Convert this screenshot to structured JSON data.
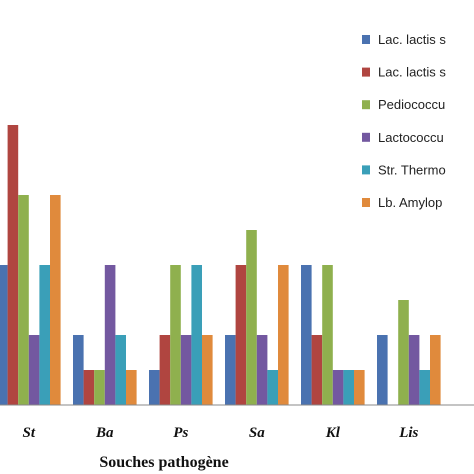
{
  "chart_data": {
    "type": "bar",
    "title": "",
    "xlabel": "Souches pathogène",
    "ylabel": "",
    "ylim": [
      0,
      8
    ],
    "grid": false,
    "legend_position": "right",
    "categories": [
      "St",
      "Ba",
      "Ps",
      "Sa",
      "Kl",
      "Lis"
    ],
    "series": [
      {
        "name": "Lac. lactis s",
        "color": "#4a72b0",
        "values": [
          4,
          2,
          1,
          2,
          4,
          2
        ]
      },
      {
        "name": "Lac. lactis s",
        "color": "#b04540",
        "values": [
          8,
          1,
          2,
          4,
          2,
          0
        ]
      },
      {
        "name": "Pediococcu",
        "color": "#8fb04e",
        "values": [
          6,
          1,
          4,
          5,
          4,
          3
        ]
      },
      {
        "name": "Lactococcu",
        "color": "#7358a0",
        "values": [
          2,
          4,
          2,
          2,
          1,
          2
        ]
      },
      {
        "name": "Str. Thermo",
        "color": "#3a9fb8",
        "values": [
          4,
          2,
          4,
          1,
          1,
          1
        ]
      },
      {
        "name": "Lb. Amylop",
        "color": "#e08a3c",
        "values": [
          6,
          1,
          2,
          4,
          1,
          2
        ]
      }
    ]
  }
}
